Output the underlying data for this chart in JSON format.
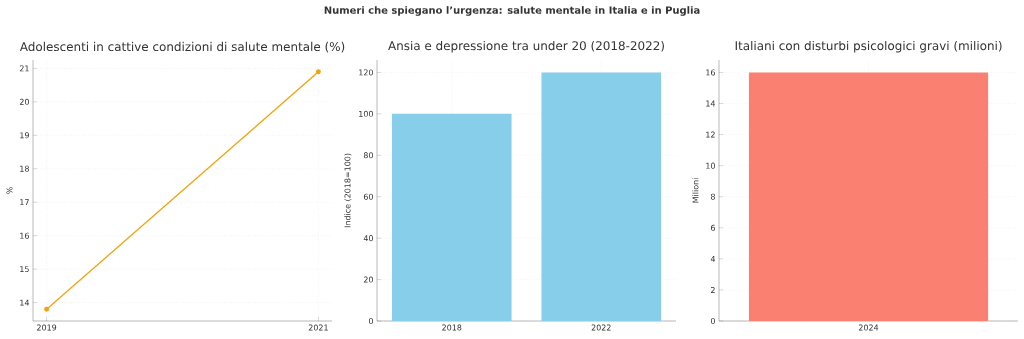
{
  "chart_data": [
    {
      "type": "line",
      "title": "Adolescenti in cattive condizioni di salute mentale (%)",
      "ylabel": "%",
      "annotations": [
        "Numeri che spiegano l’urgenza: salute mentale in Italia e in Puglia"
      ],
      "x": [
        2019,
        2021
      ],
      "values": [
        13.8,
        20.9
      ],
      "color": "#f0a30a",
      "marker": "circle",
      "xlim": [
        2018.9,
        2021.1
      ],
      "xticks": [
        2019,
        2021
      ],
      "ylim": [
        13.45,
        21.25
      ],
      "yticks": [
        14,
        15,
        16,
        17,
        18,
        19,
        20,
        21
      ],
      "grid": true
    },
    {
      "type": "bar",
      "title": "Ansia e depressione tra under 20 (2018-2022)",
      "ylabel": "Indice (2018=100)",
      "categories": [
        "2018",
        "2022"
      ],
      "values": [
        100,
        120
      ],
      "color": "#87ceeb",
      "ylim": [
        0,
        126
      ],
      "yticks": [
        0,
        20,
        40,
        60,
        80,
        100,
        120
      ],
      "grid": true
    },
    {
      "type": "bar",
      "title": "Italiani con disturbi psicologici gravi (milioni)",
      "ylabel": "Milioni",
      "categories": [
        "2024"
      ],
      "values": [
        16
      ],
      "color": "#fa8072",
      "ylim": [
        0,
        16.8
      ],
      "yticks": [
        0,
        2,
        4,
        6,
        8,
        10,
        12,
        14,
        16
      ],
      "grid": true
    }
  ]
}
